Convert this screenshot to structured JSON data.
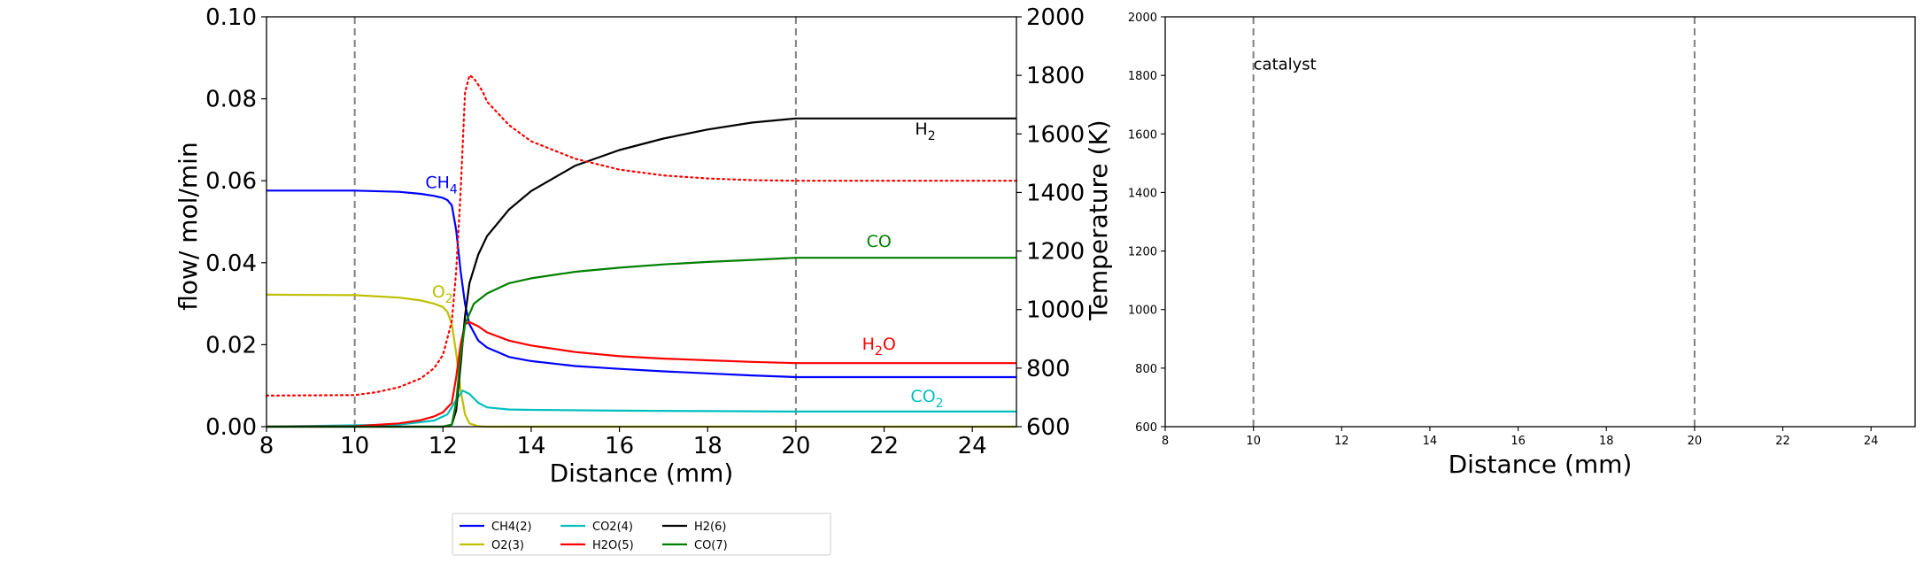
{
  "chart_data": [
    {
      "type": "line",
      "xlabel": "Distance (mm)",
      "ylabel": "flow/ mol/min",
      "y2label": "Temperature (K)",
      "xlim": [
        8,
        25
      ],
      "ylim": [
        0,
        0.1
      ],
      "y2lim": [
        600,
        2000
      ],
      "xticks": [
        "8",
        "10",
        "12",
        "14",
        "16",
        "18",
        "20",
        "22",
        "24"
      ],
      "yticks": [
        "0.00",
        "0.02",
        "0.04",
        "0.06",
        "0.08",
        "0.10"
      ],
      "y2ticks": [
        "600",
        "800",
        "1000",
        "1200",
        "1400",
        "1600",
        "1800",
        "2000"
      ],
      "vlines": [
        10,
        20
      ],
      "grid": false,
      "legend_position": "below plots",
      "series": [
        {
          "name": "CH4(2)",
          "color": "#0000ff",
          "style": "solid",
          "points": [
            [
              8,
              0.0576
            ],
            [
              10,
              0.0576
            ],
            [
              11,
              0.0573
            ],
            [
              11.5,
              0.0568
            ],
            [
              11.8,
              0.0563
            ],
            [
              12,
              0.0558
            ],
            [
              12.1,
              0.0553
            ],
            [
              12.2,
              0.054
            ],
            [
              12.3,
              0.048
            ],
            [
              12.4,
              0.038
            ],
            [
              12.5,
              0.03
            ],
            [
              12.6,
              0.025
            ],
            [
              12.8,
              0.021
            ],
            [
              13,
              0.0193
            ],
            [
              13.5,
              0.017
            ],
            [
              14,
              0.016
            ],
            [
              15,
              0.0148
            ],
            [
              16,
              0.0141
            ],
            [
              17,
              0.0135
            ],
            [
              18,
              0.013
            ],
            [
              19,
              0.0125
            ],
            [
              20,
              0.0121
            ],
            [
              25,
              0.0121
            ]
          ]
        },
        {
          "name": "O2(3)",
          "color": "#bfbf00",
          "style": "solid",
          "points": [
            [
              8,
              0.0322
            ],
            [
              10,
              0.0321
            ],
            [
              11,
              0.0315
            ],
            [
              11.5,
              0.0308
            ],
            [
              11.8,
              0.03
            ],
            [
              12,
              0.0292
            ],
            [
              12.1,
              0.028
            ],
            [
              12.2,
              0.025
            ],
            [
              12.3,
              0.018
            ],
            [
              12.4,
              0.009
            ],
            [
              12.5,
              0.003
            ],
            [
              12.6,
              0.0008
            ],
            [
              12.8,
              0.0001
            ],
            [
              13,
              0
            ],
            [
              25,
              0
            ]
          ]
        },
        {
          "name": "CO2(4)",
          "color": "#00bfbf",
          "style": "solid",
          "points": [
            [
              8,
              0
            ],
            [
              11,
              0.0005
            ],
            [
              11.8,
              0.0015
            ],
            [
              12.1,
              0.003
            ],
            [
              12.3,
              0.0065
            ],
            [
              12.45,
              0.0088
            ],
            [
              12.6,
              0.008
            ],
            [
              12.8,
              0.0058
            ],
            [
              13,
              0.0047
            ],
            [
              13.5,
              0.0042
            ],
            [
              14,
              0.0041
            ],
            [
              16,
              0.0039
            ],
            [
              18,
              0.0038
            ],
            [
              20,
              0.0037
            ],
            [
              25,
              0.0037
            ]
          ]
        },
        {
          "name": "H2O(5)",
          "color": "#ff0000",
          "style": "solid",
          "points": [
            [
              8,
              0
            ],
            [
              10,
              0.0001
            ],
            [
              11,
              0.0008
            ],
            [
              11.5,
              0.0016
            ],
            [
              11.8,
              0.0025
            ],
            [
              12,
              0.0035
            ],
            [
              12.2,
              0.0058
            ],
            [
              12.3,
              0.012
            ],
            [
              12.4,
              0.02
            ],
            [
              12.5,
              0.025
            ],
            [
              12.6,
              0.0255
            ],
            [
              12.8,
              0.0245
            ],
            [
              13,
              0.023
            ],
            [
              13.5,
              0.021
            ],
            [
              14,
              0.0198
            ],
            [
              15,
              0.0182
            ],
            [
              16,
              0.0172
            ],
            [
              17,
              0.0166
            ],
            [
              18,
              0.0162
            ],
            [
              19,
              0.0158
            ],
            [
              20,
              0.0155
            ],
            [
              25,
              0.0155
            ]
          ]
        },
        {
          "name": "H2(6)",
          "color": "#000000",
          "style": "solid",
          "points": [
            [
              8,
              0
            ],
            [
              12,
              0
            ],
            [
              12.2,
              0.0005
            ],
            [
              12.3,
              0.004
            ],
            [
              12.4,
              0.015
            ],
            [
              12.5,
              0.027
            ],
            [
              12.6,
              0.035
            ],
            [
              12.8,
              0.042
            ],
            [
              13,
              0.0465
            ],
            [
              13.5,
              0.053
            ],
            [
              14,
              0.0575
            ],
            [
              15,
              0.0637
            ],
            [
              16,
              0.0675
            ],
            [
              17,
              0.0703
            ],
            [
              18,
              0.0725
            ],
            [
              19,
              0.0742
            ],
            [
              20,
              0.0752
            ],
            [
              25,
              0.0752
            ]
          ]
        },
        {
          "name": "CO(7)",
          "color": "#008000",
          "style": "solid",
          "points": [
            [
              8,
              0
            ],
            [
              12,
              0
            ],
            [
              12.2,
              0.0005
            ],
            [
              12.3,
              0.006
            ],
            [
              12.4,
              0.017
            ],
            [
              12.5,
              0.025
            ],
            [
              12.7,
              0.03
            ],
            [
              13,
              0.0325
            ],
            [
              13.5,
              0.035
            ],
            [
              14,
              0.0362
            ],
            [
              15,
              0.0378
            ],
            [
              16,
              0.0388
            ],
            [
              17,
              0.0396
            ],
            [
              18,
              0.0402
            ],
            [
              19,
              0.0407
            ],
            [
              20,
              0.0412
            ],
            [
              25,
              0.0412
            ]
          ]
        },
        {
          "name": "",
          "axis": "y2",
          "color": "#ff0000",
          "style": "dotted",
          "points": [
            [
              8,
              706
            ],
            [
              10,
              708
            ],
            [
              10.5,
              718
            ],
            [
              11,
              735
            ],
            [
              11.5,
              765
            ],
            [
              11.8,
              800
            ],
            [
              12,
              845
            ],
            [
              12.2,
              960
            ],
            [
              12.3,
              1130
            ],
            [
              12.4,
              1400
            ],
            [
              12.5,
              1740
            ],
            [
              12.6,
              1800
            ],
            [
              12.7,
              1790
            ],
            [
              12.9,
              1745
            ],
            [
              13,
              1710
            ],
            [
              13.5,
              1630
            ],
            [
              14,
              1575
            ],
            [
              15,
              1515
            ],
            [
              16,
              1478
            ],
            [
              17,
              1458
            ],
            [
              18,
              1448
            ],
            [
              19,
              1442
            ],
            [
              20,
              1440
            ],
            [
              25,
              1440
            ]
          ]
        }
      ],
      "annotations": [
        {
          "base": "CH",
          "sub": "4",
          "x": 11.6,
          "y": 0.0582,
          "color": "#0000ff"
        },
        {
          "base": "O",
          "sub": "2",
          "x": 11.75,
          "y": 0.0315,
          "color": "#bfbf00"
        },
        {
          "base": "CO",
          "sub": "2",
          "x": 22.6,
          "y": 0.006,
          "color": "#00bfbf"
        },
        {
          "base": "H",
          "sub": "2",
          "x": 22.7,
          "y": 0.0713,
          "color": "#000000"
        },
        {
          "base": "CO",
          "sub": "",
          "x": 21.6,
          "y": 0.0438,
          "color": "#008000"
        },
        {
          "base": "H",
          "sub": "2",
          "tail": "O",
          "x": 21.5,
          "y": 0.0188,
          "color": "#ff0000"
        }
      ]
    },
    {
      "type": "line",
      "xlabel": "Distance (mm)",
      "xlim": [
        8,
        25
      ],
      "ylim": [
        600,
        2000
      ],
      "xticks": [
        "8",
        "10",
        "12",
        "14",
        "16",
        "18",
        "20",
        "22",
        "24"
      ],
      "yticks": [
        "600",
        "800",
        "1000",
        "1200",
        "1400",
        "1600",
        "1800",
        "2000"
      ],
      "vlines": [
        10,
        20
      ],
      "grid": false,
      "series": [],
      "annotations": [
        {
          "base": "catalyst",
          "sub": "",
          "x": 10.0,
          "y": 1820,
          "color": "#000000"
        }
      ]
    }
  ]
}
